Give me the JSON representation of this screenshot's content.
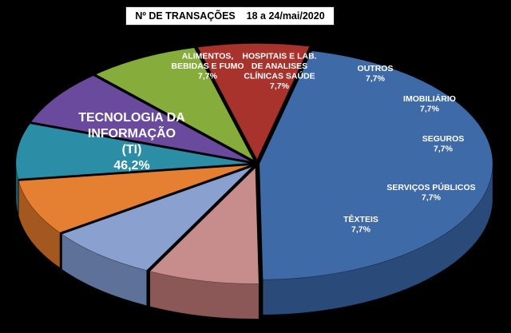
{
  "chart_data": {
    "type": "pie",
    "title": "Nº DE TRANSAÇÕES    18 a 24/mai/2020",
    "legend": "none",
    "slices": [
      {
        "name": "TECNOLOGIA DA INFORMAÇÃO (TI)",
        "label_lines": [
          "TECNOLOGIA DA",
          "INFORMAÇÃO",
          "(TI)"
        ],
        "value_label": "46,2%",
        "value": 46.2,
        "color": "#3f6aa8",
        "side_color": "#2a4a7a",
        "text_color": "#ffffff"
      },
      {
        "name": "TÊXTEIS",
        "label_lines": [
          "TÊXTEIS"
        ],
        "value_label": "7,7%",
        "value": 7.7,
        "color": "#c78d8d",
        "side_color": "#8c5757",
        "text_color": "#ffffff"
      },
      {
        "name": "SERVIÇOS PÚBLICOS",
        "label_lines": [
          "SERVIÇOS PÚBLICOS"
        ],
        "value_label": "7,7%",
        "value": 7.7,
        "color": "#8aa1cf",
        "side_color": "#5d7199",
        "text_color": "#ffffff"
      },
      {
        "name": "SEGUROS",
        "label_lines": [
          "SEGUROS"
        ],
        "value_label": "7,7%",
        "value": 7.7,
        "color": "#e57f32",
        "side_color": "#a45820",
        "text_color": "#ffffff"
      },
      {
        "name": "IMOBILIÁRIO",
        "label_lines": [
          "IMOBILIÁRIO"
        ],
        "value_label": "7,7%",
        "value": 7.7,
        "color": "#2c8ea6",
        "side_color": "#1d6273",
        "text_color": "#ffffff"
      },
      {
        "name": "OUTROS",
        "label_lines": [
          "OUTROS"
        ],
        "value_label": "7,7%",
        "value": 7.7,
        "color": "#6a4a9c",
        "side_color": "#48326c",
        "text_color": "#ffffff"
      },
      {
        "name": "HOSPITAIS E LAB. DE ANALISES CLÍNICAS SAÚDE",
        "label_lines": [
          "HOSPITAIS E LAB.",
          "DE ANALISES",
          "CLÍNICAS SAÚDE"
        ],
        "value_label": "7,7%",
        "value": 7.7,
        "color": "#86ad3c",
        "side_color": "#5c7828",
        "text_color": "#ffffff"
      },
      {
        "name": "ALIMENTOS, BEBIDAS E FUMO",
        "label_lines": [
          "ALIMENTOS,",
          "BEBIDAS E FUMO"
        ],
        "value_label": "7,7%",
        "value": 7.7,
        "color": "#a8322c",
        "side_color": "#74211d",
        "text_color": "#ffffff"
      }
    ]
  }
}
